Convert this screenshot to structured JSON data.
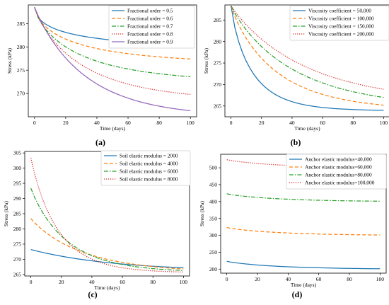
{
  "chart_data": [
    {
      "type": "line",
      "panel_label": "(a)",
      "xlabel": "Time (days)",
      "ylabel": "Stress (kPa)",
      "xlim": [
        -4,
        104
      ],
      "ylim": [
        265,
        289
      ],
      "xticks": [
        0,
        20,
        40,
        60,
        80,
        100
      ],
      "yticks": [
        270,
        275,
        280,
        285
      ],
      "grid": false,
      "legend_position": "top-right",
      "model": {
        "y0": 288.5,
        "samples": 41
      },
      "series": [
        {
          "name": "Fractional order = 0.5",
          "color": "#1f77b4",
          "dash": "solid",
          "y_end": 280.4,
          "time_constant": 25,
          "shape_power": 0.55
        },
        {
          "name": "Fractional order = 0.6",
          "color": "#ff7f0e",
          "dash": "dashed",
          "y_end": 277.4,
          "time_constant": 28,
          "shape_power": 0.65
        },
        {
          "name": "Fractional order = 0.7",
          "color": "#2ca02c",
          "dash": "dashdot",
          "y_end": 273.6,
          "time_constant": 30,
          "shape_power": 0.75
        },
        {
          "name": "Fractional order = 0.8",
          "color": "#d62728",
          "dash": "dotted",
          "y_end": 269.8,
          "time_constant": 32,
          "shape_power": 0.85
        },
        {
          "name": "Fractional order = 0.9",
          "color": "#9467bd",
          "dash": "solid",
          "y_end": 266.3,
          "time_constant": 33,
          "shape_power": 0.95
        }
      ]
    },
    {
      "type": "line",
      "panel_label": "(b)",
      "xlabel": "Time (days)",
      "ylabel": "Stress (kPa)",
      "xlim": [
        -4,
        104
      ],
      "ylim": [
        262.5,
        288.5
      ],
      "xticks": [
        0,
        20,
        40,
        60,
        80,
        100
      ],
      "yticks": [
        265,
        270,
        275,
        280,
        285
      ],
      "grid": false,
      "legend_position": "top-right",
      "model": {
        "y0": 288.3,
        "samples": 41
      },
      "series": [
        {
          "name": "Viscosity coefficient = 50,000",
          "color": "#1f77b4",
          "dash": "solid",
          "y_end": 264.0,
          "time_constant": 14,
          "shape_power": 0.85
        },
        {
          "name": "Viscosity coefficient = 100,000",
          "color": "#ff7f0e",
          "dash": "dashed",
          "y_end": 265.2,
          "time_constant": 30,
          "shape_power": 0.9
        },
        {
          "name": "Viscosity coefficient = 150,000",
          "color": "#2ca02c",
          "dash": "dashdot",
          "y_end": 267.0,
          "time_constant": 42,
          "shape_power": 0.92
        },
        {
          "name": "Viscosity coefficient = 200,000",
          "color": "#d62728",
          "dash": "dotted",
          "y_end": 268.9,
          "time_constant": 50,
          "shape_power": 0.95
        }
      ]
    },
    {
      "type": "line",
      "panel_label": "(c)",
      "xlabel": "Time (days)",
      "ylabel": "Stress (kPa)",
      "xlim": [
        -4,
        104
      ],
      "ylim": [
        264.5,
        305.5
      ],
      "xticks": [
        0,
        20,
        40,
        60,
        80,
        100
      ],
      "yticks": [
        265,
        270,
        275,
        280,
        285,
        290,
        295,
        300,
        305
      ],
      "grid": false,
      "legend_position": "top-right",
      "model": {
        "y_end_all": 266.3,
        "samples": 41
      },
      "series": [
        {
          "name": "Soil elastic modulus = 2000",
          "color": "#1f77b4",
          "dash": "solid",
          "y_start": 273.2,
          "y_end": 267.2,
          "time_constant": 55,
          "shape_power": 1.0
        },
        {
          "name": "Soil elastic modulus = 4000",
          "color": "#ff7f0e",
          "dash": "dashed",
          "y_start": 283.4,
          "y_end": 266.8,
          "time_constant": 35,
          "shape_power": 0.95
        },
        {
          "name": "Soil elastic modulus = 6000",
          "color": "#2ca02c",
          "dash": "dashdot",
          "y_start": 293.4,
          "y_end": 266.3,
          "time_constant": 24,
          "shape_power": 0.95
        },
        {
          "name": "Soil elastic modulus = 8000",
          "color": "#d62728",
          "dash": "dotted",
          "y_start": 303.4,
          "y_end": 265.8,
          "time_constant": 18,
          "shape_power": 0.95
        }
      ]
    },
    {
      "type": "line",
      "panel_label": "(d)",
      "xlabel": "Time (days)",
      "ylabel": "Stress (kPa)",
      "xlim": [
        -4,
        104
      ],
      "ylim": [
        188,
        540
      ],
      "xticks": [
        0,
        20,
        40,
        60,
        80,
        100
      ],
      "yticks": [
        200,
        250,
        300,
        350,
        400,
        450,
        500
      ],
      "grid": false,
      "legend_position": "top-right",
      "model": {
        "samples": 41
      },
      "series": [
        {
          "name": "Anchor elastic modulus=40,000",
          "color": "#1f77b4",
          "dash": "solid",
          "y_start": 223,
          "y_end": 201,
          "time_constant": 35,
          "shape_power": 0.9
        },
        {
          "name": "Anchor elastic modulus=60,000",
          "color": "#ff7f0e",
          "dash": "dashed",
          "y_start": 323,
          "y_end": 301,
          "time_constant": 35,
          "shape_power": 0.9
        },
        {
          "name": "Anchor elastic modulus=80,000",
          "color": "#2ca02c",
          "dash": "dashdot",
          "y_start": 423,
          "y_end": 401,
          "time_constant": 35,
          "shape_power": 0.9
        },
        {
          "name": "Anchor elastic modulus=100,000",
          "color": "#d62728",
          "dash": "dotted",
          "y_start": 524,
          "y_end": 501,
          "time_constant": 35,
          "shape_power": 0.9
        }
      ]
    }
  ]
}
